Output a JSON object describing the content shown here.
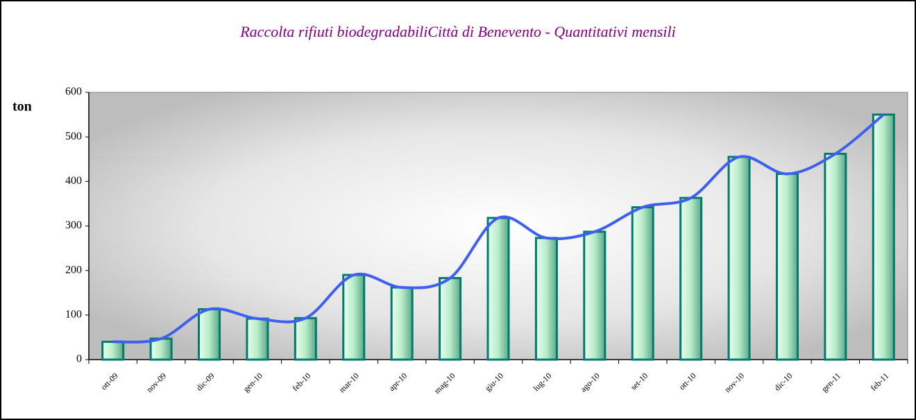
{
  "chart_data": {
    "type": "bar",
    "title": "Raccolta rifiuti biodegradabiliCittà di Benevento - Quantitativi mensili",
    "y_label": "ton",
    "categories": [
      "ott-09",
      "nov-09",
      "dic-09",
      "gen-10",
      "feb-10",
      "mar-10",
      "apr-10",
      "mag-10",
      "giu-10",
      "lug-10",
      "ago-10",
      "set-10",
      "ott-10",
      "nov-10",
      "dic-10",
      "gen-11",
      "feb-11"
    ],
    "values": [
      40,
      47,
      113,
      92,
      93,
      190,
      162,
      183,
      318,
      273,
      287,
      342,
      363,
      455,
      417,
      462,
      550
    ],
    "color": "#a8e0b8",
    "border_color": "#007a6a",
    "line_color": "#3f5ff0",
    "title_color": "#800080",
    "ylim": [
      0,
      600
    ],
    "yticks": [
      0,
      100,
      200,
      300,
      400,
      500,
      600
    ]
  }
}
